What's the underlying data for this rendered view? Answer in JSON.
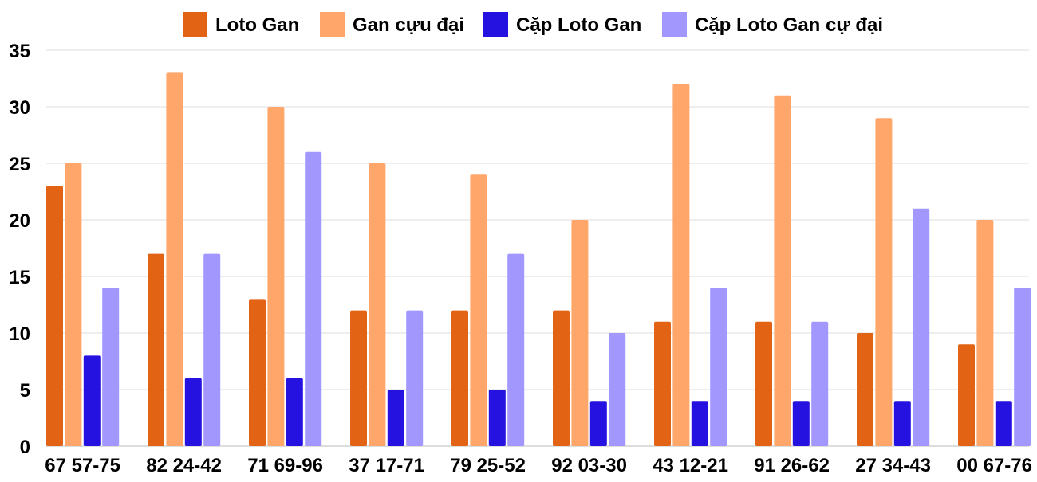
{
  "chart_data": {
    "type": "bar",
    "categories": [
      "67 57-75",
      "82 24-42",
      "71 69-96",
      "37 17-71",
      "79 25-52",
      "92 03-30",
      "43 12-21",
      "91 26-62",
      "27 34-43",
      "00 67-76"
    ],
    "series": [
      {
        "name": "Loto Gan",
        "color": "#e26314",
        "values": [
          23,
          17,
          13,
          12,
          12,
          12,
          11,
          11,
          10,
          9
        ]
      },
      {
        "name": "Gan cựu đại",
        "color": "#ffa66b",
        "values": [
          25,
          33,
          30,
          25,
          24,
          20,
          32,
          31,
          29,
          20
        ]
      },
      {
        "name": "Cặp Loto Gan",
        "color": "#2612e0",
        "values": [
          8,
          6,
          6,
          5,
          5,
          4,
          4,
          4,
          4,
          4
        ]
      },
      {
        "name": "Cặp Loto Gan cự đại",
        "color": "#a197fd",
        "values": [
          14,
          17,
          26,
          12,
          17,
          10,
          14,
          11,
          21,
          14
        ]
      }
    ],
    "yticks": [
      "0",
      "5",
      "10",
      "15",
      "20",
      "25",
      "30",
      "35"
    ],
    "ylim": [
      0,
      35
    ],
    "grid": true,
    "legend": "top"
  }
}
